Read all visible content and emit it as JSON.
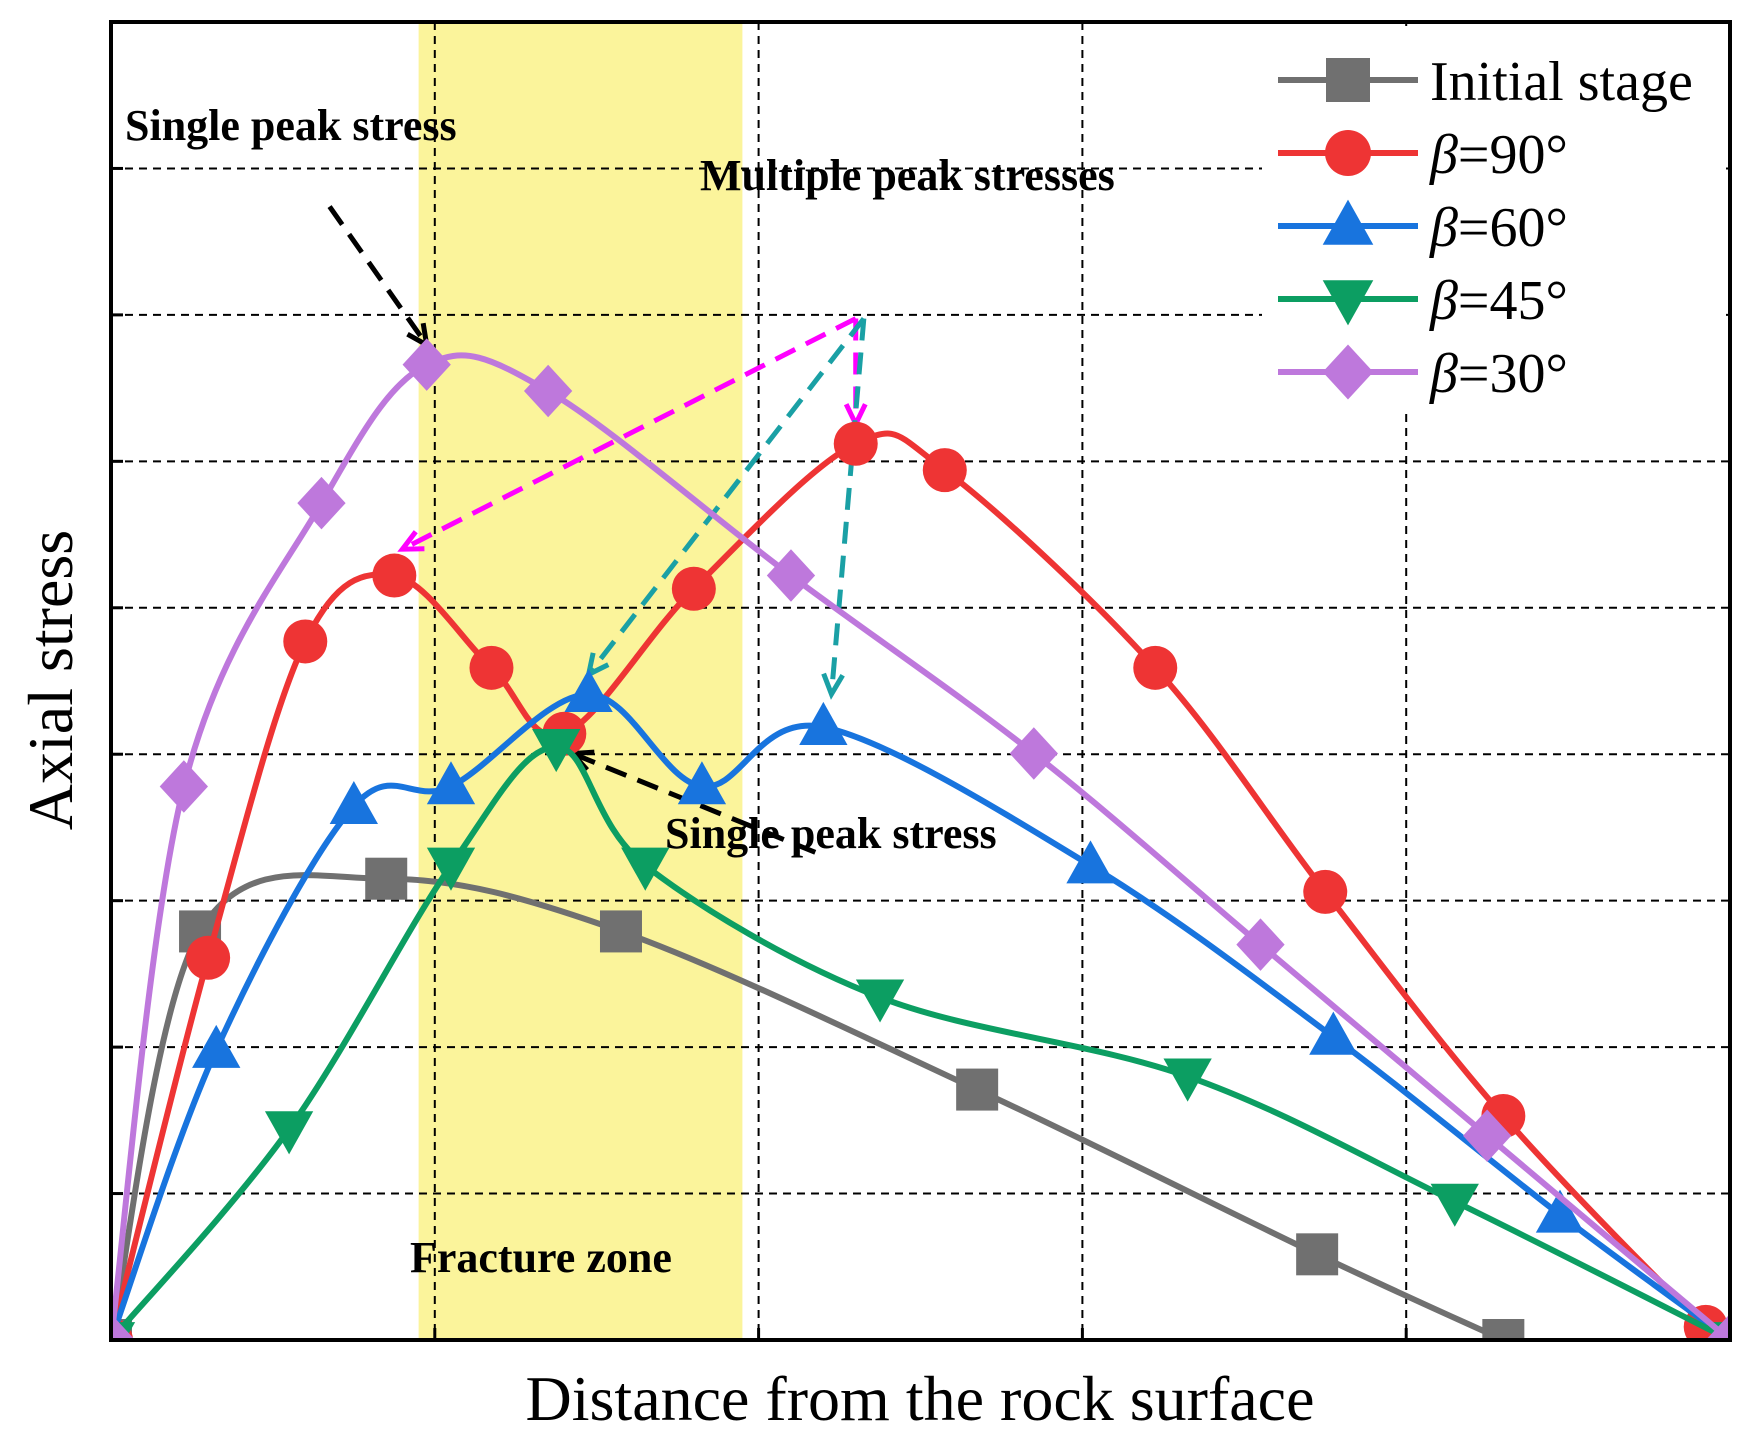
{
  "chart_data": {
    "type": "line",
    "title": "",
    "xlabel": "Distance from the rock surface",
    "ylabel": "Axial stress",
    "xlim": [
      0,
      10
    ],
    "ylim": [
      0,
      10
    ],
    "grid": true,
    "x_ticks_shown": false,
    "y_ticks_shown": false,
    "legend_position": "top-right",
    "shaded_region": {
      "label": "Fracture zone",
      "x_range": [
        1.9,
        3.9
      ],
      "color": "#faf28a"
    },
    "series": [
      {
        "name": "Initial stage",
        "marker": "square",
        "color": "#707070",
        "points": [
          [
            0,
            0
          ],
          [
            0.55,
            3.1
          ],
          [
            1.7,
            3.5
          ],
          [
            3.15,
            3.1
          ],
          [
            5.35,
            1.9
          ],
          [
            7.45,
            0.65
          ],
          [
            8.6,
            0
          ]
        ]
      },
      {
        "name": "β=90°",
        "marker": "circle",
        "color": "#ee3434",
        "points": [
          [
            0,
            0
          ],
          [
            0.6,
            2.9
          ],
          [
            1.2,
            5.3
          ],
          [
            1.75,
            5.8
          ],
          [
            2.35,
            5.1
          ],
          [
            2.8,
            4.6
          ],
          [
            3.6,
            5.7
          ],
          [
            4.6,
            6.8
          ],
          [
            5.15,
            6.6
          ],
          [
            6.45,
            5.1
          ],
          [
            7.5,
            3.4
          ],
          [
            8.6,
            1.7
          ],
          [
            9.85,
            0.1
          ],
          [
            10,
            0
          ]
        ]
      },
      {
        "name": "β=60°",
        "marker": "triangle-up",
        "color": "#1874de",
        "points": [
          [
            0,
            0
          ],
          [
            0.65,
            2.2
          ],
          [
            1.5,
            4.05
          ],
          [
            2.1,
            4.2
          ],
          [
            2.95,
            4.9
          ],
          [
            3.65,
            4.2
          ],
          [
            4.4,
            4.65
          ],
          [
            6.05,
            3.6
          ],
          [
            7.55,
            2.3
          ],
          [
            8.95,
            0.95
          ],
          [
            10,
            0
          ]
        ]
      },
      {
        "name": "β=45°",
        "marker": "triangle-down",
        "color": "#0c9e62",
        "points": [
          [
            0,
            0
          ],
          [
            1.1,
            1.6
          ],
          [
            2.1,
            3.6
          ],
          [
            2.75,
            4.5
          ],
          [
            3.3,
            3.6
          ],
          [
            4.75,
            2.6
          ],
          [
            6.65,
            2.0
          ],
          [
            8.3,
            1.05
          ],
          [
            10,
            0
          ]
        ]
      },
      {
        "name": "β=30°",
        "marker": "diamond",
        "color": "#be78dc",
        "points": [
          [
            0,
            0
          ],
          [
            0.45,
            4.2
          ],
          [
            1.3,
            6.35
          ],
          [
            1.95,
            7.4
          ],
          [
            2.7,
            7.2
          ],
          [
            4.2,
            5.8
          ],
          [
            5.7,
            4.45
          ],
          [
            7.1,
            3.0
          ],
          [
            8.5,
            1.55
          ],
          [
            10,
            0
          ]
        ]
      }
    ],
    "annotations": [
      {
        "text": "Single peak stress",
        "series": "β=30°",
        "target": [
          1.95,
          7.4
        ]
      },
      {
        "text": "Multiple peak stresses",
        "series": "β=90°/β=60°",
        "targets": [
          [
            1.75,
            5.8
          ],
          [
            4.6,
            6.8
          ],
          [
            2.95,
            4.9
          ],
          [
            4.4,
            4.65
          ]
        ]
      },
      {
        "text": "Single peak stress",
        "series": "β=45°",
        "target": [
          2.75,
          4.5
        ]
      },
      {
        "text": "Fracture zone",
        "region": true
      }
    ]
  }
}
